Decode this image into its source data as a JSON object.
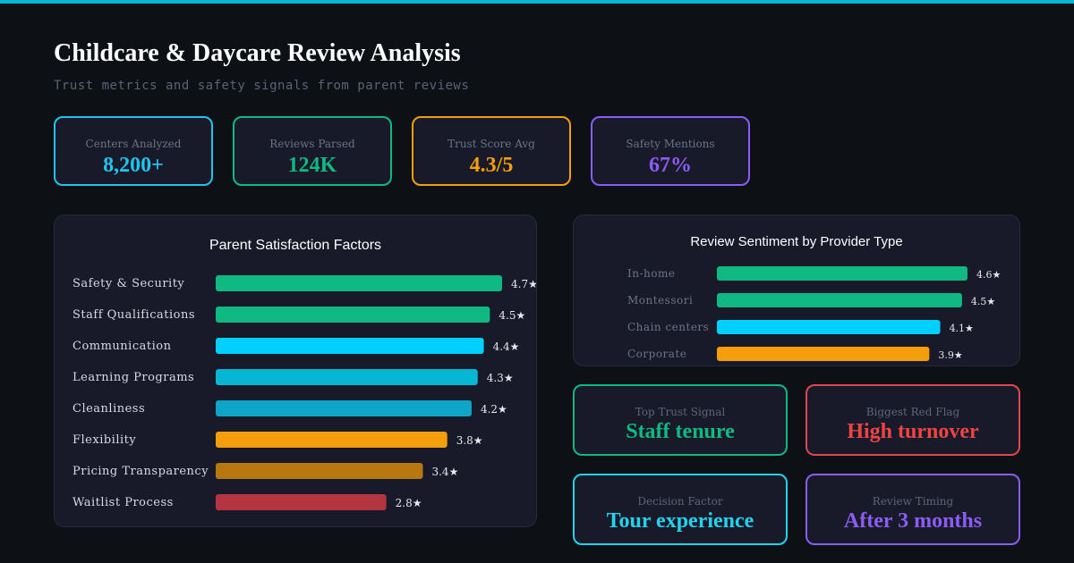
{
  "header": {
    "title": "Childcare & Daycare Review Analysis",
    "subtitle": "Trust metrics and safety signals from parent reviews"
  },
  "stats": [
    {
      "label": "Centers Analyzed",
      "value": "8,200+",
      "color": "#22c4ee"
    },
    {
      "label": "Reviews Parsed",
      "value": "124K",
      "color": "#10b981"
    },
    {
      "label": "Trust Score Avg",
      "value": "4.3/5",
      "color": "#f59e0b"
    },
    {
      "label": "Safety Mentions",
      "value": "67%",
      "color": "#8b5cf6"
    }
  ],
  "chart_data": [
    {
      "type": "bar",
      "orientation": "horizontal",
      "title": "Parent Satisfaction Factors",
      "categories": [
        "Safety & Security",
        "Staff Qualifications",
        "Communication",
        "Learning Programs",
        "Cleanliness",
        "Flexibility",
        "Pricing Transparency",
        "Waitlist Process"
      ],
      "values": [
        4.7,
        4.5,
        4.4,
        4.3,
        4.2,
        3.8,
        3.4,
        2.8
      ],
      "labels": [
        "4.7★",
        "4.5★",
        "4.4★",
        "4.3★",
        "4.2★",
        "3.8★",
        "3.4★",
        "2.8★"
      ],
      "colors": [
        "#10b981",
        "#10b981",
        "#00d0ff",
        "#06b6d4",
        "#0ea5c9",
        "#f59e0b",
        "#b7790f",
        "#b4353f"
      ],
      "xlim": [
        0,
        4.7
      ],
      "grid": false
    },
    {
      "type": "bar",
      "orientation": "horizontal",
      "title": "Review Sentiment by Provider Type",
      "categories": [
        "In-home",
        "Montessori",
        "Chain centers",
        "Corporate"
      ],
      "values": [
        4.6,
        4.5,
        4.1,
        3.9
      ],
      "labels": [
        "4.6★",
        "4.5★",
        "4.1★",
        "3.9★"
      ],
      "colors": [
        "#10b981",
        "#10b981",
        "#00d0ff",
        "#f59e0b"
      ],
      "xlim": [
        0,
        4.6
      ],
      "grid": false
    }
  ],
  "insights": [
    {
      "label": "Top Trust Signal",
      "value": "Staff tenure",
      "color": "#10b981",
      "border": "#10b981"
    },
    {
      "label": "Biggest Red Flag",
      "value": "High turnover",
      "color": "#ef4444",
      "border": "#e0474f"
    },
    {
      "label": "Decision Factor",
      "value": "Tour experience",
      "color": "#22d3ee",
      "border": "#22d3ee"
    },
    {
      "label": "Review Timing",
      "value": "After 3 months",
      "color": "#8b5cf6",
      "border": "#8b5cf6"
    }
  ]
}
